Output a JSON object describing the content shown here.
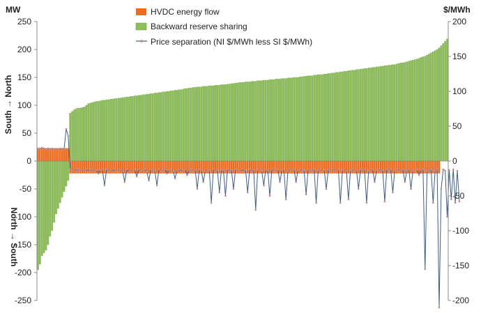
{
  "chart_data": {
    "type": "bar",
    "title": "",
    "left_axis": {
      "unit": "MW",
      "ylim": [
        -250,
        250
      ],
      "ticks": [
        "250",
        "200",
        "150",
        "100",
        "50",
        "0",
        "-50",
        "-100",
        "-150",
        "-200",
        "-250"
      ],
      "upper_label": "South → North",
      "lower_label": "North → South"
    },
    "right_axis": {
      "unit": "$/MWh",
      "ylim": [
        -200,
        200
      ],
      "ticks": [
        "200",
        "150",
        "100",
        "50",
        "0",
        "-50",
        "-100",
        "-150",
        "-200"
      ]
    },
    "grid": false,
    "legend_position": "top-center",
    "legend": [
      "HVDC energy flow",
      "Backward reserve sharing",
      "Price separation (NI $/MWh less SI $/MWh)"
    ],
    "colors": {
      "hvdc": "#f26a1b",
      "reserve": "#8fbf5a",
      "reserve_stroke": "#6b9a3d",
      "price_line": "#3f5a80",
      "price_marker": "#c08a8a"
    },
    "series": [
      {
        "name": "HVDC energy flow",
        "axis": "left",
        "note_values": "MW per trading period (sorted by reserve sharing)",
        "values": [
          23,
          23,
          23,
          23,
          23,
          23,
          23,
          23,
          23,
          23,
          23,
          23,
          23,
          23,
          23,
          23,
          -22,
          -22,
          -22,
          -22,
          -22,
          -22,
          -22,
          -22,
          -22,
          -22,
          -22,
          -22,
          -22,
          -22,
          -22,
          -22,
          -22,
          -22,
          -22,
          -22,
          -22,
          -22,
          -22,
          -22,
          -22,
          -22,
          -22,
          -22,
          -22,
          -22,
          -22,
          -22,
          -22,
          -22,
          -22,
          -22,
          -22,
          -22,
          -22,
          -22,
          -22,
          -22,
          -22,
          -22,
          -22,
          -22,
          -22,
          -22,
          -22,
          -22,
          -22,
          -22,
          -22,
          -22,
          -22,
          -22,
          -22,
          -22,
          -22,
          -22,
          -22,
          -22,
          -22,
          -22,
          -22,
          -22,
          -22,
          -22,
          -22,
          -22,
          -22,
          -22,
          -22,
          -22,
          -22,
          -22,
          -22,
          -22,
          -22,
          -22,
          -22,
          -22,
          -22,
          -22,
          -22,
          -22,
          -22,
          -22,
          -22,
          -22,
          -22,
          -22,
          -22,
          -22,
          -22,
          -22,
          -22,
          -22,
          -22,
          -22,
          -22,
          -22,
          -22,
          -22,
          -22,
          -22,
          -22,
          -22,
          -22,
          -22,
          -22,
          -22,
          -22,
          -22,
          -22,
          -22,
          -22,
          -22,
          -22,
          -22,
          -22,
          -22,
          -22,
          -22,
          -22,
          -22,
          -22,
          -22,
          -22,
          -22,
          -22,
          -22,
          -22,
          -22,
          -22,
          -22,
          -22,
          -22,
          -22,
          -22,
          -22,
          -22,
          -22,
          -22,
          -22,
          -22,
          -22,
          -22,
          -22,
          -22,
          -22,
          -22,
          -22,
          -22,
          -22,
          -22,
          -22,
          -22,
          -22,
          -22,
          -22,
          -22,
          -22,
          -22,
          -22,
          -22,
          -22,
          -22,
          -22,
          -22,
          -22,
          -22,
          -22,
          -22,
          -22,
          -22,
          -22,
          -22,
          -22,
          -22,
          -22,
          -22,
          -22,
          -22
        ]
      },
      {
        "name": "Backward reserve sharing",
        "axis": "left",
        "values": [
          -195,
          -185,
          -170,
          -165,
          -160,
          -150,
          -135,
          -125,
          -110,
          -95,
          -85,
          -75,
          -65,
          -55,
          -45,
          -35,
          86,
          89,
          92,
          94,
          95,
          95,
          96,
          97,
          100,
          103,
          104,
          105,
          106,
          107,
          107,
          108,
          109,
          109,
          110,
          110,
          111,
          111,
          112,
          112,
          113,
          113,
          114,
          114,
          115,
          115,
          116,
          116,
          117,
          117,
          118,
          118,
          119,
          119,
          120,
          120,
          121,
          121,
          122,
          122,
          123,
          123,
          124,
          124,
          125,
          125,
          126,
          126,
          127,
          127,
          128,
          128,
          129,
          130,
          130,
          131,
          131,
          132,
          132,
          133,
          133,
          133,
          134,
          134,
          134,
          135,
          135,
          135,
          136,
          136,
          136,
          137,
          137,
          137,
          138,
          138,
          139,
          139,
          140,
          140,
          141,
          141,
          141,
          142,
          142,
          142,
          143,
          143,
          143,
          144,
          144,
          144,
          145,
          145,
          145,
          146,
          146,
          146,
          147,
          147,
          147,
          148,
          148,
          148,
          149,
          149,
          149,
          150,
          150,
          150,
          151,
          151,
          152,
          152,
          153,
          153,
          153,
          154,
          154,
          155,
          155,
          155,
          156,
          156,
          157,
          157,
          158,
          158,
          159,
          159,
          160,
          160,
          161,
          161,
          162,
          162,
          163,
          163,
          164,
          164,
          165,
          165,
          166,
          166,
          167,
          167,
          168,
          168,
          169,
          169,
          170,
          170,
          171,
          171,
          172,
          172,
          173,
          173,
          174,
          175,
          176,
          176,
          177,
          178,
          179,
          180,
          181,
          182,
          183,
          184,
          186,
          187,
          188,
          190,
          192,
          194,
          196,
          198,
          200,
          203,
          207,
          211,
          215,
          219
        ]
      },
      {
        "name": "Price separation (NI $/MWh less SI $/MWh)",
        "axis": "right",
        "values": [
          18,
          18,
          19,
          18,
          17,
          18,
          17,
          18,
          17,
          16,
          17,
          18,
          16,
          18,
          46,
          36,
          -12,
          -13,
          -12,
          -14,
          -12,
          -13,
          -14,
          -13,
          -12,
          -15,
          -13,
          -12,
          -14,
          -13,
          -18,
          -13,
          -12,
          -35,
          -12,
          -14,
          -13,
          -15,
          -12,
          -14,
          -13,
          -12,
          -14,
          -30,
          -12,
          -15,
          -14,
          -13,
          -12,
          -22,
          -12,
          -14,
          -13,
          -12,
          -15,
          -28,
          -12,
          -13,
          -14,
          -35,
          -12,
          -14,
          -13,
          -12,
          -18,
          -13,
          -12,
          -14,
          -25,
          -13,
          -12,
          -15,
          -13,
          -12,
          -20,
          -13,
          -12,
          -14,
          -13,
          -40,
          -12,
          -13,
          -30,
          -14,
          -12,
          -13,
          -60,
          -12,
          -14,
          -13,
          -45,
          -12,
          -13,
          -50,
          -12,
          -14,
          -13,
          -40,
          -12,
          -13,
          -14,
          -12,
          -15,
          -13,
          -45,
          -12,
          -14,
          -13,
          -70,
          -12,
          -13,
          -14,
          -35,
          -12,
          -13,
          -50,
          -12,
          -14,
          -13,
          -12,
          -30,
          -13,
          -12,
          -55,
          -14,
          -12,
          -13,
          -12,
          -30,
          -13,
          -12,
          -14,
          -13,
          -48,
          -12,
          -13,
          -14,
          -12,
          -60,
          -13,
          -12,
          -14,
          -13,
          -40,
          -12,
          -13,
          -12,
          -14,
          -13,
          -12,
          -60,
          -13,
          -12,
          -14,
          -55,
          -13,
          -12,
          -14,
          -13,
          -40,
          -12,
          -13,
          -12,
          -60,
          -14,
          -13,
          -12,
          -30,
          -13,
          -12,
          -14,
          -13,
          -58,
          -12,
          -13,
          -12,
          -45,
          -13,
          -12,
          -14,
          -13,
          -12,
          -30,
          -13,
          -12,
          -40,
          -14,
          -13,
          -12,
          -20,
          -13,
          -12,
          -155,
          -14,
          -13,
          -12,
          -60,
          -13,
          -12,
          -210,
          -40,
          -12,
          -14,
          -80,
          -13,
          -55,
          -12,
          -60,
          -14,
          -58
        ]
      }
    ]
  }
}
